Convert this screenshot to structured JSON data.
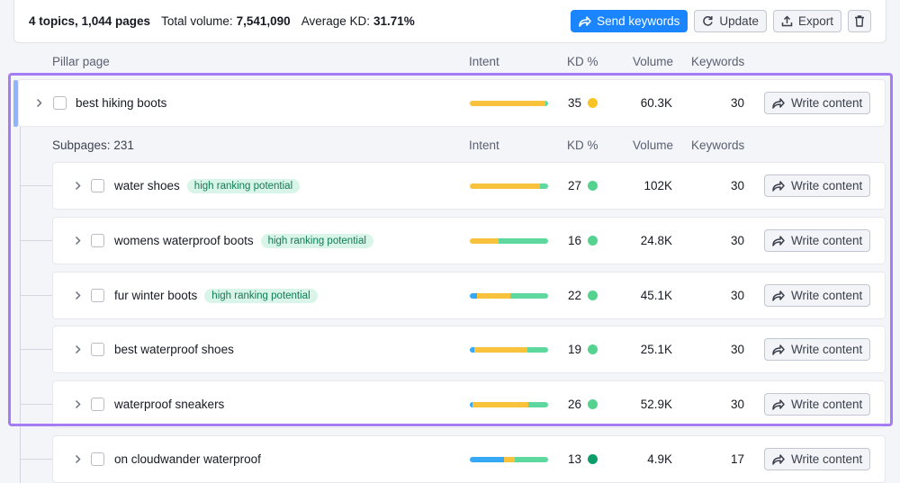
{
  "summary": {
    "topics_pages": "4 topics, 1,044 pages",
    "total_volume_label": "Total volume:",
    "total_volume_value": "7,541,090",
    "avg_kd_label": "Average KD:",
    "avg_kd_value": "31.71%"
  },
  "toolbar": {
    "send_label": "Send keywords",
    "update_label": "Update",
    "export_label": "Export"
  },
  "columns": {
    "pillar_page": "Pillar page",
    "intent": "Intent",
    "kd": "KD %",
    "volume": "Volume",
    "keywords": "Keywords"
  },
  "subpages_header": {
    "label": "Subpages:",
    "count": "231"
  },
  "write_label": "Write content",
  "colors": {
    "accent_blue": "#1a85ff",
    "intent_blue": "#35a9f3",
    "intent_yellow": "#f9c23c",
    "intent_green": "#5fd8a0",
    "kd_yellow": "#f8c325",
    "kd_green": "#53d38d",
    "kd_darkgreen": "#0b9e6b",
    "highlight": "#a47cf3"
  },
  "pillar": {
    "keyword": "best hiking boots",
    "intent": [
      {
        "color": "#f9c23c",
        "frac": 0.97
      },
      {
        "color": "#5fd8a0",
        "frac": 0.03
      }
    ],
    "kd": "35",
    "kd_color": "#f8c325",
    "volume": "60.3K",
    "keywords": "30"
  },
  "subpages": [
    {
      "keyword": "water shoes",
      "badge": "high ranking potential",
      "intent": [
        {
          "color": "#f9c23c",
          "frac": 0.9
        },
        {
          "color": "#5fd8a0",
          "frac": 0.1
        }
      ],
      "kd": "27",
      "kd_color": "#53d38d",
      "volume": "102K",
      "keywords": "30"
    },
    {
      "keyword": "womens waterproof boots",
      "badge": "high ranking potential",
      "intent": [
        {
          "color": "#f9c23c",
          "frac": 0.37
        },
        {
          "color": "#5fd8a0",
          "frac": 0.63
        }
      ],
      "kd": "16",
      "kd_color": "#53d38d",
      "volume": "24.8K",
      "keywords": "30"
    },
    {
      "keyword": "fur winter boots",
      "badge": "high ranking potential",
      "intent": [
        {
          "color": "#35a9f3",
          "frac": 0.09
        },
        {
          "color": "#f9c23c",
          "frac": 0.43
        },
        {
          "color": "#5fd8a0",
          "frac": 0.48
        }
      ],
      "kd": "22",
      "kd_color": "#53d38d",
      "volume": "45.1K",
      "keywords": "30"
    },
    {
      "keyword": "best waterproof shoes",
      "badge": "",
      "intent": [
        {
          "color": "#35a9f3",
          "frac": 0.06
        },
        {
          "color": "#f9c23c",
          "frac": 0.67
        },
        {
          "color": "#5fd8a0",
          "frac": 0.27
        }
      ],
      "kd": "19",
      "kd_color": "#53d38d",
      "volume": "25.1K",
      "keywords": "30"
    },
    {
      "keyword": "waterproof sneakers",
      "badge": "",
      "intent": [
        {
          "color": "#35a9f3",
          "frac": 0.03
        },
        {
          "color": "#f9c23c",
          "frac": 0.72
        },
        {
          "color": "#5fd8a0",
          "frac": 0.25
        }
      ],
      "kd": "26",
      "kd_color": "#53d38d",
      "volume": "52.9K",
      "keywords": "30"
    },
    {
      "keyword": "on cloudwander waterproof",
      "badge": "",
      "intent": [
        {
          "color": "#35a9f3",
          "frac": 0.44
        },
        {
          "color": "#f9c23c",
          "frac": 0.13
        },
        {
          "color": "#5fd8a0",
          "frac": 0.43
        }
      ],
      "kd": "13",
      "kd_color": "#0b9e6b",
      "volume": "4.9K",
      "keywords": "17"
    }
  ]
}
